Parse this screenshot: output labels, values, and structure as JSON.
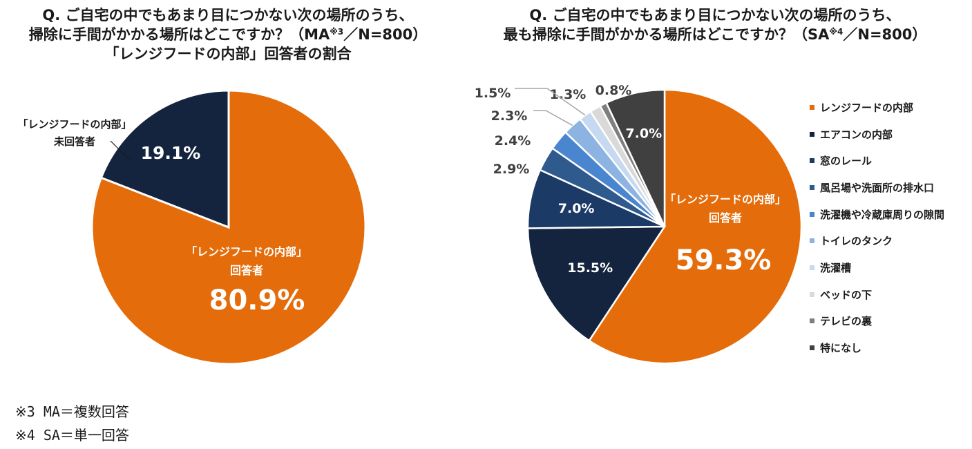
{
  "chart_data": [
    {
      "type": "pie",
      "title_line1": "Q. ご自宅の中でもあまり目につかない次の場所のうち、",
      "title_line2_pre": "掃除に手間がかかる場所はどこですか？（MA",
      "title_line2_sup": "※3",
      "title_line2_post": "／N=800）",
      "title_line3": "「レンジフードの内部」回答者の割合",
      "slices": [
        {
          "name_line1": "「レンジフードの内部」",
          "name_line2": "回答者",
          "value": 80.9,
          "label": "80.9%",
          "color": "#E46C0A"
        },
        {
          "name_line1": "「レンジフードの内部」",
          "name_line2": "未回答者",
          "value": 19.1,
          "label": "19.1%",
          "color": "#14243F"
        }
      ]
    },
    {
      "type": "pie",
      "title_line1": "Q. ご自宅の中でもあまり目につかない次の場所のうち、",
      "title_line2_pre": "最も掃除に手間がかかる場所はどこですか？（SA",
      "title_line2_sup": "※4",
      "title_line2_post": "／N=800）",
      "inner_label_line1": "「レンジフードの内部」",
      "inner_label_line2": "回答者",
      "slices": [
        {
          "name": "レンジフードの内部",
          "value": 59.3,
          "label": "59.3%",
          "color": "#E46C0A"
        },
        {
          "name": "エアコンの内部",
          "value": 15.5,
          "label": "15.5%",
          "color": "#14243F"
        },
        {
          "name": "窓のレール",
          "value": 7.0,
          "label": "7.0%",
          "color": "#1C3A66"
        },
        {
          "name": "風呂場や洗面所の排水口",
          "value": 2.9,
          "label": "2.9%",
          "color": "#2F5A8E"
        },
        {
          "name": "洗濯機や冷蔵庫周りの隙間",
          "value": 2.4,
          "label": "2.4%",
          "color": "#4A86D0"
        },
        {
          "name": "トイレのタンク",
          "value": 2.3,
          "label": "2.3%",
          "color": "#8DB3E2"
        },
        {
          "name": "洗濯槽",
          "value": 1.5,
          "label": "1.5%",
          "color": "#C6D9F1"
        },
        {
          "name": "ベッドの下",
          "value": 1.3,
          "label": "1.3%",
          "color": "#D9D9D9"
        },
        {
          "name": "テレビの裏",
          "value": 0.8,
          "label": "0.8%",
          "color": "#7F7F7F"
        },
        {
          "name": "特になし",
          "value": 7.0,
          "label": "7.0%",
          "color": "#404040"
        }
      ]
    }
  ],
  "footnotes": [
    "※3 MA＝複数回答",
    "※4 SA＝単一回答"
  ]
}
